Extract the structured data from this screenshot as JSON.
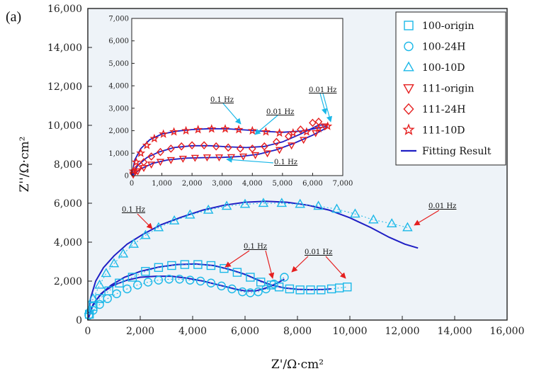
{
  "panel_label": "(a)",
  "colors": {
    "cyan": "#1bb8e8",
    "red": "#e51f1f",
    "fit": "#1f1fc4",
    "plot_bg": "#eef3f8"
  },
  "chart_data": [
    {
      "id": "main",
      "type": "scatter",
      "xlabel": "Z'/Ω·cm²",
      "ylabel": "Z''/Ω·cm²",
      "xlim": [
        0,
        16000
      ],
      "ylim": [
        0,
        16000
      ],
      "xticks": [
        "0",
        "2,000",
        "4,000",
        "6,000",
        "8,000",
        "10,000",
        "12,000",
        "14,000",
        "16,000"
      ],
      "yticks": [
        "0",
        "2,000",
        "4,000",
        "6,000",
        "8,000",
        "10,000",
        "12,000",
        "14,000",
        "16,000"
      ],
      "grid": false,
      "legend_position": "top-right",
      "series": [
        {
          "name": "100-origin",
          "marker": "square",
          "color": "#1bb8e8",
          "x": [
            60,
            200,
            450,
            800,
            1200,
            1700,
            2200,
            2700,
            3200,
            3700,
            4200,
            4700,
            5200,
            5700,
            6200,
            6600,
            7000,
            7300,
            7700,
            8100,
            8500,
            8900,
            9300,
            9600,
            9900
          ],
          "y": [
            300,
            700,
            1100,
            1500,
            1900,
            2200,
            2500,
            2700,
            2800,
            2850,
            2850,
            2800,
            2650,
            2450,
            2200,
            1950,
            1800,
            1700,
            1600,
            1550,
            1550,
            1550,
            1600,
            1650,
            1700
          ]
        },
        {
          "name": "100-24H",
          "marker": "circle",
          "color": "#1bb8e8",
          "x": [
            40,
            200,
            450,
            750,
            1100,
            1500,
            1900,
            2300,
            2700,
            3100,
            3500,
            3900,
            4300,
            4700,
            5100,
            5500,
            5900,
            6200,
            6500,
            6800,
            7100,
            7500
          ],
          "y": [
            250,
            500,
            800,
            1100,
            1350,
            1600,
            1800,
            1950,
            2050,
            2100,
            2100,
            2050,
            2000,
            1900,
            1750,
            1600,
            1450,
            1400,
            1450,
            1600,
            1850,
            2200
          ]
        },
        {
          "name": "100-10D",
          "marker": "triangle",
          "color": "#1bb8e8",
          "x": [
            50,
            200,
            450,
            700,
            1000,
            1350,
            1750,
            2200,
            2700,
            3300,
            3900,
            4600,
            5300,
            6000,
            6700,
            7400,
            8100,
            8800,
            9500,
            10200,
            10900,
            11600,
            12200
          ],
          "y": [
            500,
            1100,
            1800,
            2400,
            2900,
            3400,
            3900,
            4350,
            4750,
            5100,
            5400,
            5650,
            5850,
            5950,
            6000,
            6000,
            5950,
            5850,
            5700,
            5450,
            5150,
            4950,
            4750
          ]
        }
      ],
      "fits": [
        {
          "name": "Fitting Result",
          "color": "#1f1fc4",
          "x": [
            0,
            100,
            300,
            600,
            1000,
            1500,
            2000,
            2600,
            3200,
            3800,
            4400,
            5000,
            5600,
            6000,
            6400,
            6700,
            7000,
            7300,
            7500
          ],
          "y": [
            0,
            500,
            1000,
            1450,
            1800,
            2050,
            2200,
            2250,
            2250,
            2150,
            2000,
            1800,
            1600,
            1500,
            1500,
            1600,
            1750,
            1950,
            2100
          ]
        },
        {
          "name": "fit-100-origin",
          "color": "#1f1fc4",
          "x": [
            0,
            200,
            500,
            900,
            1400,
            2000,
            2700,
            3400,
            4100,
            4800,
            5400,
            6000,
            6500,
            7000,
            7500,
            8000,
            8500,
            9000,
            9300
          ],
          "y": [
            0,
            800,
            1350,
            1800,
            2200,
            2500,
            2720,
            2850,
            2880,
            2800,
            2600,
            2350,
            2050,
            1800,
            1650,
            1580,
            1560,
            1570,
            1600
          ]
        },
        {
          "name": "fit-100-10D",
          "color": "#1f1fc4",
          "x": [
            0,
            100,
            300,
            600,
            1000,
            1500,
            2100,
            2800,
            3600,
            4400,
            5200,
            6000,
            6800,
            7600,
            8400,
            9200,
            10000,
            10800,
            11500,
            12100,
            12600
          ],
          "y": [
            0,
            1100,
            2000,
            2700,
            3300,
            3900,
            4400,
            4900,
            5300,
            5650,
            5900,
            6050,
            6100,
            6050,
            5900,
            5650,
            5250,
            4750,
            4250,
            3900,
            3700
          ]
        }
      ],
      "annotations": [
        {
          "label": "0.1 Hz",
          "color": "#e51f1f"
        },
        {
          "label": "0.01 Hz",
          "color": "#e51f1f"
        },
        {
          "label": "0.1 Hz",
          "color": "#e51f1f"
        },
        {
          "label": "0.01 Hz",
          "color": "#e51f1f"
        }
      ]
    },
    {
      "id": "inset",
      "type": "scatter",
      "xlim": [
        0,
        7000
      ],
      "ylim": [
        0,
        7000
      ],
      "xticks": [
        "0",
        "1,000",
        "2,000",
        "3,000",
        "4,000",
        "5,000",
        "6,000",
        "7,000"
      ],
      "yticks": [
        "0",
        "1,000",
        "2,000",
        "3,000",
        "4,000",
        "5,000",
        "6,000",
        "7,000"
      ],
      "series": [
        {
          "name": "111-origin",
          "marker": "triangle-down",
          "color": "#e51f1f",
          "x": [
            50,
            200,
            400,
            650,
            950,
            1300,
            1700,
            2100,
            2500,
            2900,
            3300,
            3700,
            4100,
            4500,
            4900,
            5300,
            5700,
            6100,
            6400
          ],
          "y": [
            50,
            200,
            350,
            500,
            620,
            700,
            760,
            800,
            820,
            820,
            830,
            860,
            920,
            1000,
            1150,
            1350,
            1600,
            1900,
            2200
          ]
        },
        {
          "name": "111-24H",
          "marker": "diamond",
          "color": "#e51f1f",
          "x": [
            50,
            200,
            400,
            650,
            950,
            1300,
            1650,
            2000,
            2400,
            2800,
            3200,
            3600,
            4000,
            4400,
            4800,
            5200,
            5600,
            6000,
            6200
          ],
          "y": [
            100,
            350,
            600,
            850,
            1050,
            1200,
            1300,
            1350,
            1350,
            1300,
            1250,
            1200,
            1200,
            1300,
            1500,
            1750,
            2050,
            2350,
            2400
          ]
        },
        {
          "name": "111-10D",
          "marker": "star",
          "color": "#e51f1f",
          "x": [
            50,
            150,
            300,
            500,
            750,
            1050,
            1400,
            1800,
            2200,
            2650,
            3100,
            3550,
            4000,
            4450,
            4900,
            5350,
            5800,
            6200,
            6500
          ],
          "y": [
            200,
            600,
            1000,
            1350,
            1650,
            1850,
            1950,
            2000,
            2050,
            2080,
            2080,
            2050,
            2000,
            1950,
            1900,
            1900,
            1950,
            2100,
            2200
          ]
        }
      ],
      "fits": [
        {
          "name": "fit-111-origin",
          "color": "#1f1fc4",
          "x": [
            0,
            300,
            700,
            1200,
            1800,
            2400,
            3000,
            3600,
            4200,
            4800,
            5400,
            6000,
            6500
          ],
          "y": [
            0,
            300,
            550,
            700,
            780,
            800,
            810,
            850,
            950,
            1150,
            1450,
            1800,
            2150
          ]
        },
        {
          "name": "fit-111-24H",
          "color": "#1f1fc4",
          "x": [
            0,
            200,
            500,
            900,
            1400,
            2000,
            2600,
            3200,
            3800,
            4400,
            5000,
            5600,
            6200,
            6500
          ],
          "y": [
            0,
            450,
            800,
            1050,
            1250,
            1330,
            1330,
            1280,
            1250,
            1300,
            1500,
            1850,
            2250,
            2250
          ]
        },
        {
          "name": "fit-111-10D",
          "color": "#1f1fc4",
          "x": [
            0,
            100,
            300,
            600,
            1000,
            1500,
            2000,
            2600,
            3200,
            3800,
            4400,
            5000,
            5600,
            6200,
            6500
          ],
          "y": [
            0,
            700,
            1200,
            1600,
            1850,
            1980,
            2050,
            2090,
            2080,
            2030,
            1970,
            1930,
            1980,
            2120,
            2200
          ]
        }
      ],
      "annotations": [
        {
          "label": "0.1 Hz",
          "color": "#1bb8e8"
        },
        {
          "label": "0.01 Hz",
          "color": "#1bb8e8"
        },
        {
          "label": "0.01 Hz",
          "color": "#1bb8e8"
        },
        {
          "label": "0.1 Hz",
          "color": "#1bb8e8"
        }
      ]
    }
  ],
  "legend": [
    {
      "label": "100-origin",
      "marker": "square",
      "color": "#1bb8e8"
    },
    {
      "label": "100-24H",
      "marker": "circle",
      "color": "#1bb8e8"
    },
    {
      "label": "100-10D",
      "marker": "triangle",
      "color": "#1bb8e8"
    },
    {
      "label": "111-origin",
      "marker": "triangle-down",
      "color": "#e51f1f"
    },
    {
      "label": "111-24H",
      "marker": "diamond",
      "color": "#e51f1f"
    },
    {
      "label": "111-10D",
      "marker": "star",
      "color": "#e51f1f"
    },
    {
      "label": "Fitting Result",
      "marker": "line",
      "color": "#1f1fc4"
    }
  ]
}
